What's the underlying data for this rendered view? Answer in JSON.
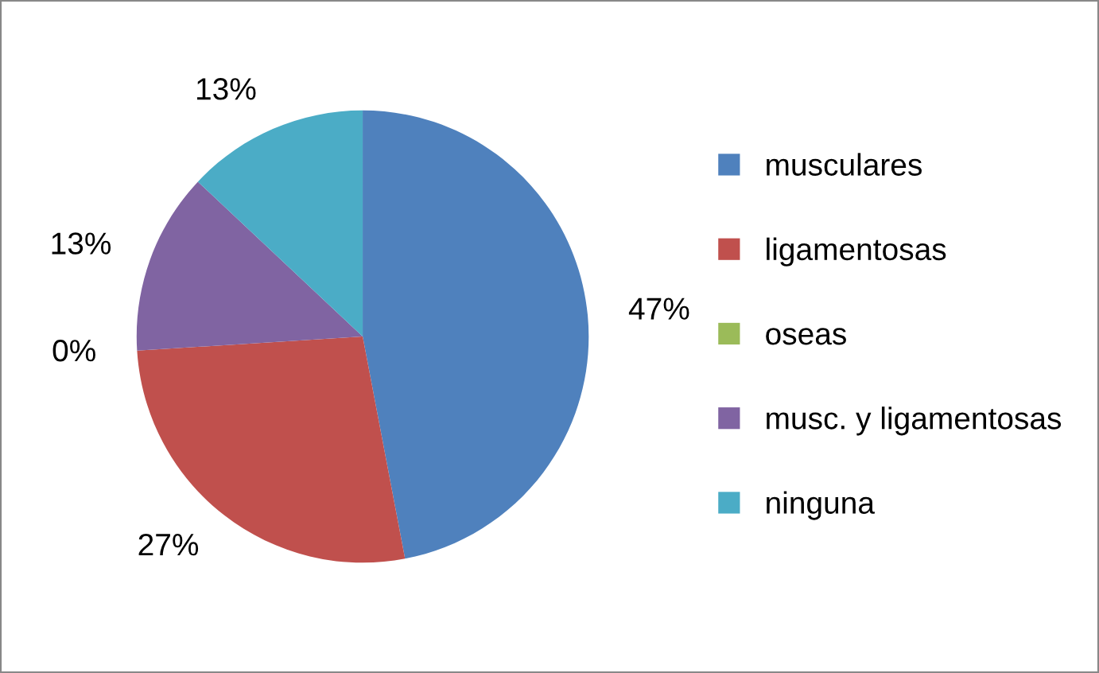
{
  "chart_data": {
    "type": "pie",
    "categories": [
      "musculares",
      "ligamentosas",
      "oseas",
      "musc. y ligamentosas",
      "ninguna"
    ],
    "values": [
      47,
      27,
      0,
      13,
      13
    ],
    "colors": [
      "#4f81bd",
      "#c0504d",
      "#9bbb59",
      "#8064a2",
      "#4bacc6"
    ],
    "value_labels": [
      "47%",
      "27%",
      "0%",
      "13%",
      "13%"
    ],
    "legend": "right"
  }
}
